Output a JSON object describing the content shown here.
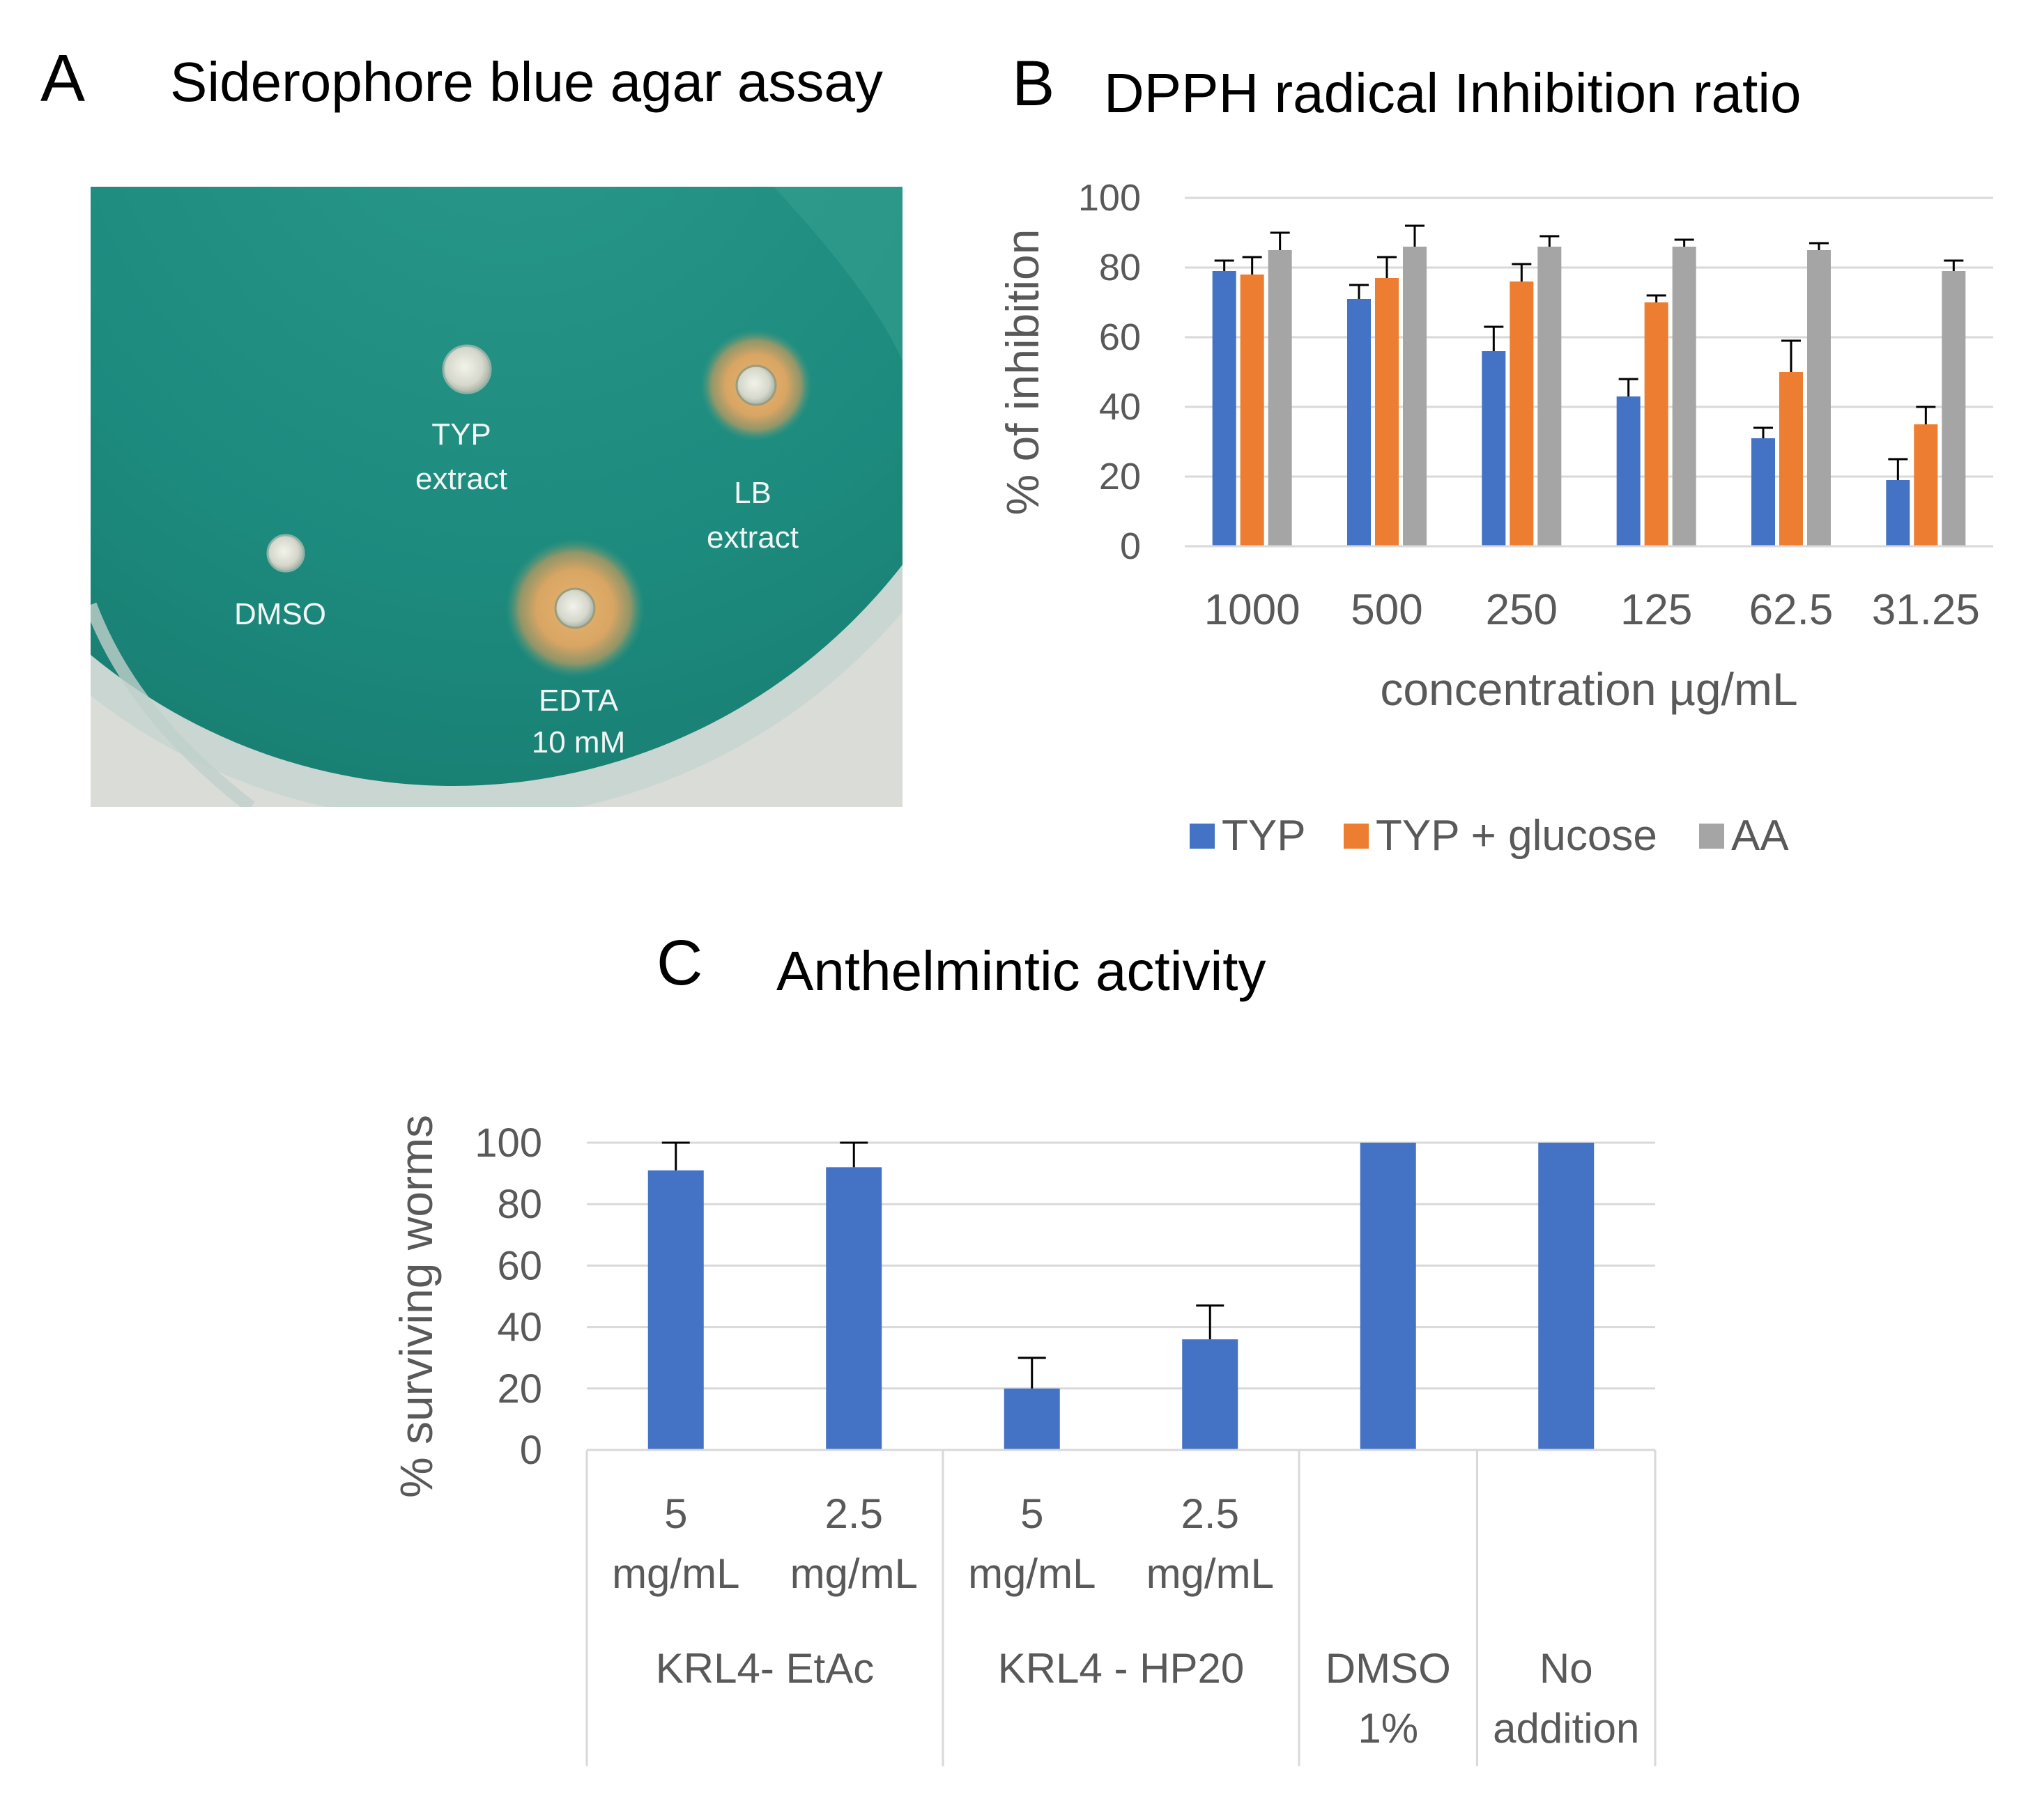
{
  "panel_a": {
    "letter": "A",
    "title": "Siderophore blue agar assay",
    "labels": {
      "typ_line1": "TYP",
      "typ_line2": "extract",
      "lb_line1": "LB",
      "lb_line2": "extract",
      "dmso": "DMSO",
      "edta_line1": "EDTA",
      "edta_line2": "10 mM"
    },
    "colors": {
      "agar": "#1c8a7d",
      "halo": "#d6a565"
    }
  },
  "chart_data": [
    {
      "id": "panel_b",
      "letter": "B",
      "type": "bar",
      "title": "DPPH radical Inhibition ratio",
      "xlabel": "concentration µg/mL",
      "ylabel": "% of inhibition",
      "ylim": [
        0,
        100
      ],
      "yticks": [
        "0",
        "20",
        "40",
        "60",
        "80",
        "100"
      ],
      "grid": true,
      "legend_position": "bottom",
      "categories": [
        "1000",
        "500",
        "250",
        "125",
        "62.5",
        "31.25"
      ],
      "series": [
        {
          "name": "TYP",
          "color": "#4472c4",
          "values": [
            79,
            71,
            56,
            43,
            31,
            19
          ],
          "errors": [
            3,
            4,
            7,
            5,
            3,
            6
          ]
        },
        {
          "name": "TYP + glucose",
          "color": "#ed7d31",
          "values": [
            78,
            77,
            76,
            70,
            50,
            35
          ],
          "errors": [
            5,
            6,
            5,
            2,
            9,
            5
          ]
        },
        {
          "name": "AA",
          "color": "#a5a5a5",
          "values": [
            85,
            86,
            86,
            86,
            85,
            79
          ],
          "errors": [
            5,
            6,
            3,
            2,
            2,
            3
          ]
        }
      ]
    },
    {
      "id": "panel_c",
      "letter": "C",
      "type": "bar",
      "title": "Anthelmintic activity",
      "ylabel": "% surviving worms",
      "ylim": [
        0,
        100
      ],
      "yticks": [
        "0",
        "20",
        "40",
        "60",
        "80",
        "100"
      ],
      "grid": true,
      "color": "#4472c4",
      "categories": [
        {
          "line1": "5",
          "line2": "mg/mL"
        },
        {
          "line1": "2.5",
          "line2": "mg/mL"
        },
        {
          "line1": "5",
          "line2": "mg/mL"
        },
        {
          "line1": "2.5",
          "line2": "mg/mL"
        },
        {
          "line1": "",
          "line2": ""
        },
        {
          "line1": "",
          "line2": ""
        }
      ],
      "groups": [
        {
          "line1": "KRL4- EtAc",
          "line2": "",
          "span": 2
        },
        {
          "line1": "KRL4 - HP20",
          "line2": "",
          "span": 2
        },
        {
          "line1": "DMSO",
          "line2": "1%",
          "span": 1
        },
        {
          "line1": "No",
          "line2": "addition",
          "span": 1
        }
      ],
      "values": [
        91,
        92,
        20,
        36,
        100,
        100
      ],
      "errors": [
        9,
        8,
        10,
        11,
        0,
        0
      ]
    }
  ]
}
